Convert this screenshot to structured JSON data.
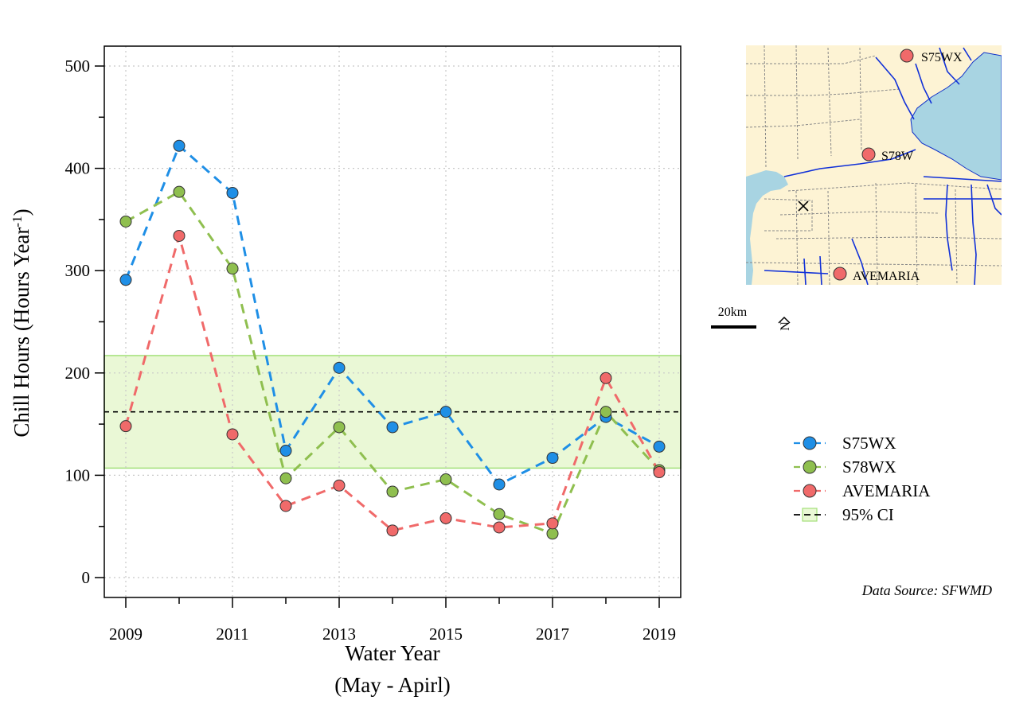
{
  "chart_data": {
    "type": "line",
    "xlabel_line1": "Water Year",
    "xlabel_line2": "(May - Apirl)",
    "ylabel": "Chill Hours (Hours Year",
    "ylabel_sup": "-1",
    "ylabel_close": ")",
    "x": [
      2009,
      2010,
      2011,
      2012,
      2013,
      2014,
      2015,
      2016,
      2017,
      2018,
      2019
    ],
    "xlim": [
      2009,
      2019
    ],
    "ylim": [
      0,
      500
    ],
    "x_ticks": [
      "2009",
      "2011",
      "2013",
      "2015",
      "2017",
      "2019"
    ],
    "y_ticks": [
      "0",
      "100",
      "200",
      "300",
      "400",
      "500"
    ],
    "grid": true,
    "series": [
      {
        "name": "S75WX",
        "color": "#1f8fe6",
        "values": [
          291,
          422,
          376,
          124,
          205,
          147,
          162,
          91,
          117,
          157,
          128
        ]
      },
      {
        "name": "S78WX",
        "color": "#8fbf4f",
        "values": [
          348,
          377,
          302,
          97,
          147,
          84,
          96,
          62,
          43,
          162,
          105
        ]
      },
      {
        "name": "AVEMARIA",
        "color": "#f06a6a",
        "values": [
          148,
          334,
          140,
          70,
          90,
          46,
          58,
          49,
          53,
          195,
          103
        ]
      }
    ],
    "reference": {
      "name": "95% CI",
      "mean": 162,
      "lower": 107,
      "upper": 217,
      "fill": "#eaf8d6",
      "edge": "#a3e07a"
    },
    "legend_position": "right"
  },
  "map": {
    "stations": [
      "S75WX",
      "S78W",
      "AVEMARIA"
    ],
    "scale_label": "20km",
    "north_label": "N",
    "water_color": "#a8d4e2",
    "land_color": "#fdf3d4"
  },
  "source": "Data Source: SFWMD"
}
